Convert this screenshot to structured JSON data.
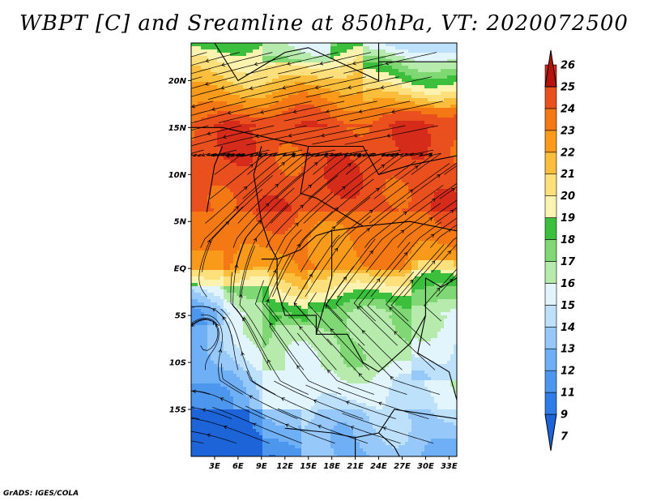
{
  "title": "WBPT [C] and Sreamline at 850hPa, VT: 2020072500",
  "credit": "GrADS: IGES/COLA",
  "map": {
    "lon_range": [
      0,
      34
    ],
    "lat_range": [
      -20,
      24
    ],
    "lat_ticks": [
      {
        "value": 20,
        "label": "20N"
      },
      {
        "value": 15,
        "label": "15N"
      },
      {
        "value": 10,
        "label": "10N"
      },
      {
        "value": 5,
        "label": "5N"
      },
      {
        "value": 0,
        "label": "EQ"
      },
      {
        "value": -5,
        "label": "5S"
      },
      {
        "value": -10,
        "label": "10S"
      },
      {
        "value": -15,
        "label": "15S"
      }
    ],
    "lon_ticks": [
      {
        "value": 3,
        "label": "3E"
      },
      {
        "value": 6,
        "label": "6E"
      },
      {
        "value": 9,
        "label": "9E"
      },
      {
        "value": 12,
        "label": "12E"
      },
      {
        "value": 15,
        "label": "15E"
      },
      {
        "value": 18,
        "label": "18E"
      },
      {
        "value": 21,
        "label": "21E"
      },
      {
        "value": 24,
        "label": "24E"
      },
      {
        "value": 27,
        "label": "27E"
      },
      {
        "value": 30,
        "label": "30E"
      },
      {
        "value": 33,
        "label": "33E"
      }
    ]
  },
  "colorbar": {
    "labels": [
      "7",
      "9",
      "11",
      "12",
      "13",
      "14",
      "15",
      "16",
      "17",
      "18",
      "19",
      "20",
      "21",
      "22",
      "23",
      "24",
      "25",
      "26"
    ],
    "colors": [
      "#1c64d8",
      "#2f7ce6",
      "#4c96ee",
      "#6eaff5",
      "#96c8fa",
      "#bde0fb",
      "#e3f5fc",
      "#b7ebae",
      "#7fd873",
      "#3cbf3c",
      "#fdf3b0",
      "#fde07c",
      "#fbbd3c",
      "#f99a1a",
      "#f47814",
      "#e9501e",
      "#d42b1a",
      "#b4140c"
    ]
  },
  "fields": {
    "wbpt_levels": [
      {
        "min": 7,
        "color": "#1c64d8"
      },
      {
        "min": 11,
        "color": "#4c96ee"
      },
      {
        "min": 12,
        "color": "#6eaff5"
      },
      {
        "min": 13,
        "color": "#96c8fa"
      },
      {
        "min": 14,
        "color": "#bde0fb"
      },
      {
        "min": 15,
        "color": "#e3f5fc"
      },
      {
        "min": 16,
        "color": "#b7ebae"
      },
      {
        "min": 17,
        "color": "#7fd873"
      },
      {
        "min": 18,
        "color": "#3cbf3c"
      },
      {
        "min": 19,
        "color": "#fdf3b0"
      },
      {
        "min": 20,
        "color": "#fde07c"
      },
      {
        "min": 21,
        "color": "#fbbd3c"
      },
      {
        "min": 22,
        "color": "#f99a1a"
      },
      {
        "min": 23,
        "color": "#f47814"
      },
      {
        "min": 24,
        "color": "#e9501e"
      },
      {
        "min": 25,
        "color": "#d42b1a"
      }
    ]
  }
}
